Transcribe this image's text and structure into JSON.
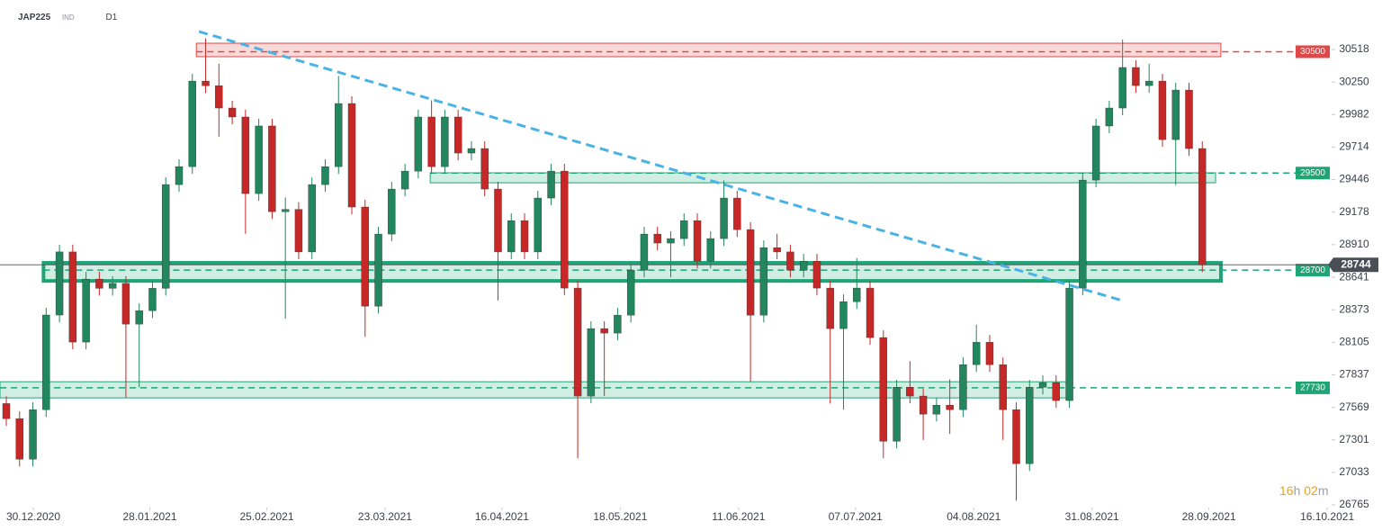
{
  "header": {
    "symbol": "JAP225",
    "market": "IND",
    "timeframe": "D1"
  },
  "countdown": {
    "hours": "16",
    "h": "h",
    "minutes": "02",
    "m": "m"
  },
  "chart_data": {
    "type": "candlestick",
    "open": [
      27600,
      27476,
      27142,
      27550,
      28330,
      28850,
      28107,
      28626,
      28550,
      28590,
      28255,
      28366,
      28550,
      29405,
      29553,
      30258,
      30220,
      30036,
      29962,
      29331,
      29888,
      29182,
      29200,
      28850,
      29405,
      29553,
      30073,
      29220,
      28403,
      28997,
      29368,
      29516,
      29962,
      29553,
      29962,
      29665,
      29702,
      29368,
      28850,
      29108,
      28850,
      29294,
      29516,
      28552,
      27662,
      28218,
      28181,
      28329,
      28700,
      28997,
      28923,
      28960,
      29108,
      28774,
      28960,
      29294,
      29034,
      28329,
      28885,
      28850,
      28700,
      28774,
      28552,
      28218,
      28440,
      28552,
      28144,
      27290,
      27735,
      27662,
      27513,
      27587,
      27550,
      27921,
      28105,
      27921,
      27550,
      27105,
      27735,
      27773,
      27625,
      28552,
      29442,
      29888,
      30036,
      30370,
      30221,
      30258,
      29776,
      30184,
      29702
    ],
    "high": [
      27660,
      27536,
      27610,
      28390,
      28910,
      28910,
      28686,
      28686,
      28650,
      28650,
      28426,
      28610,
      29465,
      29613,
      30318,
      30610,
      30400,
      30096,
      30022,
      29948,
      29948,
      29300,
      29260,
      29465,
      29613,
      30300,
      30133,
      29280,
      29057,
      29428,
      29576,
      30022,
      30100,
      30022,
      30022,
      29762,
      29762,
      29428,
      29168,
      29168,
      29354,
      29576,
      29576,
      28612,
      28278,
      28278,
      28389,
      28760,
      29057,
      29057,
      29020,
      29168,
      29168,
      29020,
      29440,
      29354,
      29094,
      28945,
      29000,
      28910,
      28834,
      28834,
      28612,
      28500,
      28800,
      28612,
      28204,
      27795,
      27950,
      27722,
      27647,
      27800,
      27981,
      28250,
      28165,
      27981,
      27610,
      27795,
      27833,
      27833,
      28612,
      29502,
      29948,
      30096,
      30600,
      30430,
      30400,
      30318,
      30244,
      30244,
      29762
    ],
    "low": [
      27416,
      27082,
      27082,
      27490,
      28270,
      28047,
      28047,
      28490,
      28490,
      27650,
      27735,
      28306,
      28490,
      29345,
      29493,
      30160,
      29800,
      29902,
      29000,
      29271,
      29122,
      28300,
      28790,
      28790,
      29345,
      29493,
      29160,
      28150,
      28343,
      28937,
      29308,
      29456,
      29493,
      29493,
      29605,
      29605,
      29308,
      28450,
      28790,
      28790,
      28790,
      29234,
      28492,
      27150,
      27602,
      27662,
      28121,
      28269,
      28640,
      28863,
      28640,
      28900,
      28714,
      28714,
      28900,
      28974,
      27780,
      28269,
      28790,
      28640,
      28640,
      28492,
      27600,
      27550,
      28380,
      28084,
      27150,
      27230,
      27602,
      27300,
      27453,
      27350,
      27490,
      27861,
      27861,
      27300,
      26800,
      27045,
      27675,
      27565,
      27565,
      28492,
      29382,
      29828,
      29976,
      30161,
      30161,
      29716,
      29400,
      29642,
      28684
    ],
    "close": [
      27476,
      27142,
      27550,
      28330,
      28850,
      28107,
      28626,
      28550,
      28590,
      28255,
      28366,
      28550,
      29405,
      29553,
      30258,
      30220,
      30036,
      29962,
      29331,
      29888,
      29182,
      29200,
      28850,
      29405,
      29553,
      30073,
      29220,
      28403,
      28997,
      29368,
      29516,
      29962,
      29553,
      29962,
      29665,
      29702,
      29368,
      28850,
      29108,
      28850,
      29294,
      29516,
      28552,
      27662,
      28218,
      28181,
      28329,
      28700,
      28997,
      28923,
      28960,
      29108,
      28774,
      28960,
      29294,
      29034,
      28329,
      28885,
      28850,
      28700,
      28774,
      28552,
      28218,
      28440,
      28552,
      28144,
      27290,
      27735,
      27662,
      27513,
      27587,
      27550,
      27921,
      28105,
      27921,
      27550,
      27105,
      27735,
      27773,
      27625,
      28552,
      29442,
      29888,
      30036,
      30370,
      30221,
      30258,
      29776,
      30184,
      29702,
      28744
    ],
    "up_color": "#22875e",
    "down_color": "#c62828",
    "xlim": [
      -0.474,
      104.2
    ],
    "ylim": [
      26624,
      30867
    ],
    "yticks": [
      30518,
      30250,
      29982,
      29714,
      29446,
      29178,
      28910,
      28641,
      28373,
      28105,
      27837,
      27569,
      27301,
      27033,
      26765
    ],
    "xticks": [
      {
        "value": 2.03,
        "label": "30.12.2020"
      },
      {
        "value": 10.8,
        "label": "28.01.2021"
      },
      {
        "value": 19.6,
        "label": "25.02.2021"
      },
      {
        "value": 28.5,
        "label": "23.03.2021"
      },
      {
        "value": 37.3,
        "label": "16.04.2021"
      },
      {
        "value": 46.2,
        "label": "18.05.2021"
      },
      {
        "value": 55.1,
        "label": "11.06.2021"
      },
      {
        "value": 63.9,
        "label": "07.07.2021"
      },
      {
        "value": 72.8,
        "label": "04.08.2021"
      },
      {
        "value": 81.7,
        "label": "31.08.2021"
      },
      {
        "value": 90.5,
        "label": "28.09.2021"
      },
      {
        "value": 99.4,
        "label": "16.10.2021"
      }
    ],
    "levels": [
      {
        "value": 30500,
        "zone": [
          30459,
          30570
        ],
        "color": "#e04848",
        "start": 14.3,
        "end": 91.4,
        "bold": false
      },
      {
        "value": 29500,
        "zone": [
          29420,
          29502
        ],
        "color": "#1fa476",
        "start": 31.9,
        "end": 91.0,
        "bold": false
      },
      {
        "value": 28700,
        "zone": [
          28611,
          28760
        ],
        "color": "#1fa476",
        "start": 2.8,
        "end": 91.4,
        "bold": true
      },
      {
        "value": 27730,
        "zone": [
          27647,
          27780
        ],
        "color": "#1fa476",
        "start": -0.474,
        "end": 80.2,
        "bold": false
      }
    ],
    "last_price": 28744,
    "last_color": "#4a4f57",
    "trendline": {
      "x": [
        14.5,
        83.8
      ],
      "y": [
        30666,
        28455
      ],
      "color": "#4ab3e6"
    }
  }
}
